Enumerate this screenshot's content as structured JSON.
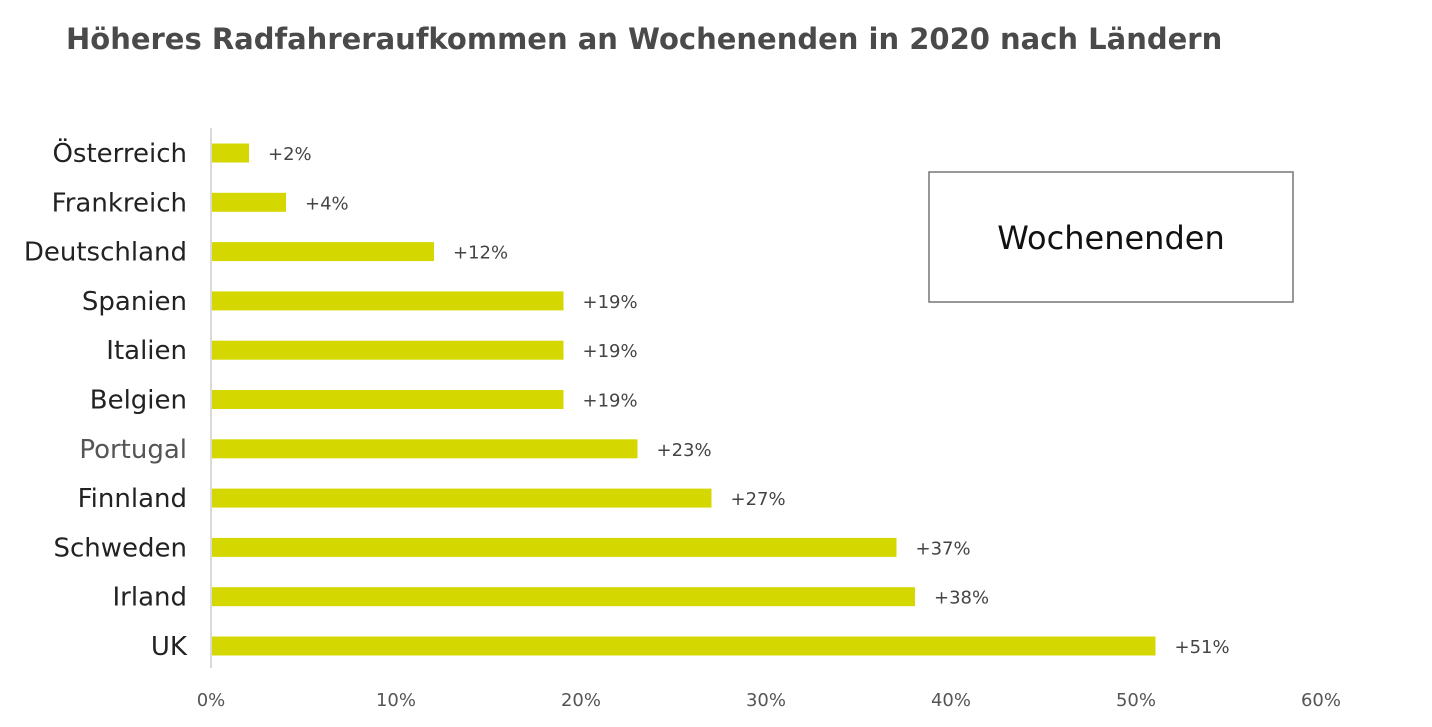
{
  "chart_data": {
    "type": "bar",
    "orientation": "horizontal",
    "title": "Höheres Radfahreraufkommen an Wochenenden in 2020 nach Ländern",
    "categories": [
      "Österreich",
      "Frankreich",
      "Deutschland",
      "Spanien",
      "Italien",
      "Belgien",
      "Portugal",
      "Finnland",
      "Schweden",
      "Irland",
      "UK"
    ],
    "series": [
      {
        "name": "Wochenenden",
        "values": [
          2,
          4,
          12,
          19,
          19,
          19,
          23,
          27,
          37,
          38,
          51
        ],
        "labels": [
          "+2%",
          "+4%",
          "+12%",
          "+19%",
          "+19%",
          "+19%",
          "+23%",
          "+27%",
          "+37%",
          "+38%",
          "+51%"
        ],
        "color": "#d4d800"
      }
    ],
    "xlim": [
      0,
      60
    ],
    "xticks": [
      "0%",
      "10%",
      "20%",
      "30%",
      "40%",
      "50%",
      "60%"
    ],
    "xlabel": "",
    "ylabel": "",
    "grid": false,
    "legend": {
      "position": "top-right",
      "entries": [
        "Wochenenden"
      ]
    },
    "axis_color": "#d9d9d9"
  }
}
